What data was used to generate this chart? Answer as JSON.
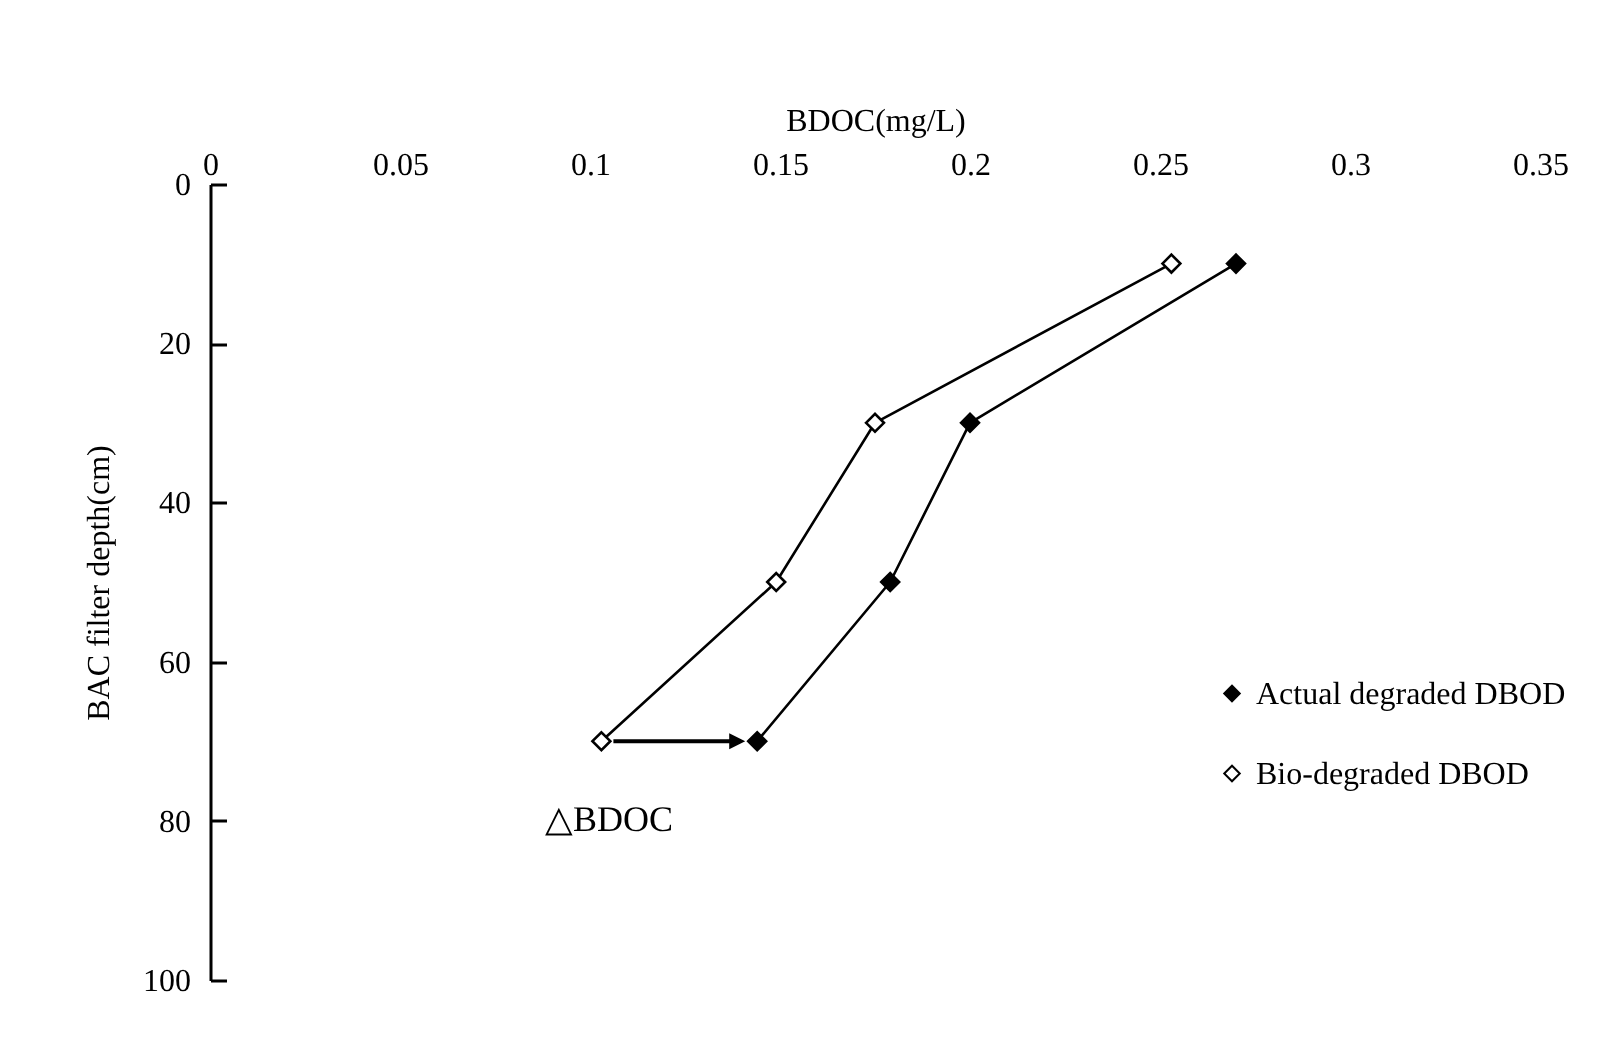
{
  "chart_data": {
    "type": "line",
    "xlabel": "BDOC(mg/L)",
    "ylabel": "BAC filter depth(cm)",
    "xlim": [
      0,
      0.35
    ],
    "xticks": [
      0,
      0.05,
      0.1,
      0.15,
      0.2,
      0.25,
      0.3,
      0.35
    ],
    "ylim": [
      100,
      0
    ],
    "yticks": [
      0,
      20,
      40,
      60,
      80,
      100
    ],
    "series": [
      {
        "name": "Actual degraded DBOD",
        "color": "#000000",
        "x": [
          0.27,
          0.2,
          0.179,
          0.144
        ],
        "values": [
          10,
          30,
          50,
          70
        ]
      },
      {
        "name": "Bio-degraded DBOD",
        "color": "#000000",
        "x": [
          0.253,
          0.175,
          0.149,
          0.103
        ],
        "values": [
          10,
          30,
          50,
          70
        ]
      }
    ],
    "annotations": [
      "△BDOC"
    ],
    "marker": "diamond",
    "line_style": "solid",
    "legend": "right",
    "grid": false
  }
}
